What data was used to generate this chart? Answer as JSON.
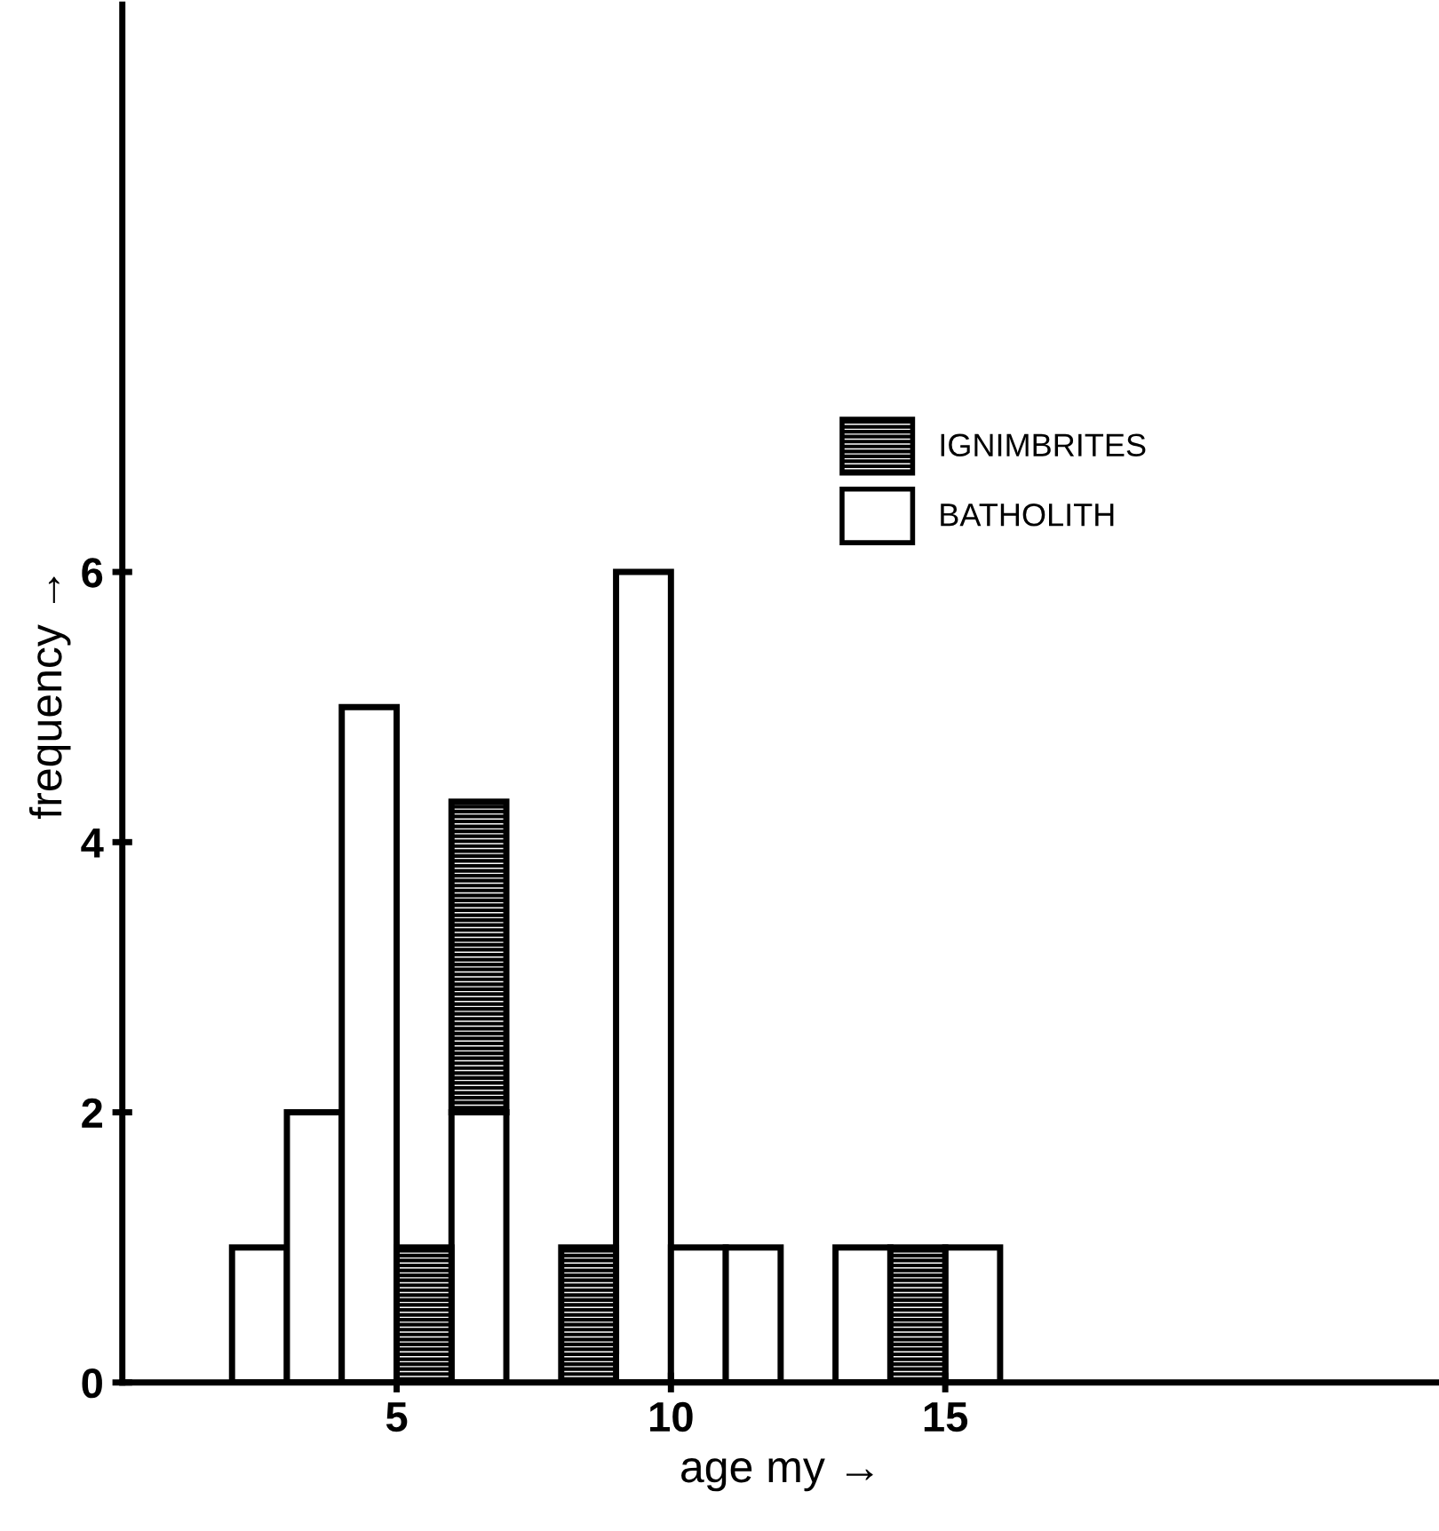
{
  "chart_data": {
    "type": "bar",
    "xlabel": "age my →",
    "ylabel": "frequency →",
    "x": [
      2.5,
      3.5,
      4.5,
      5.5,
      6.5,
      7.5,
      8.5,
      9.5,
      10.5,
      11.5,
      12.5,
      13.5,
      14.5,
      15.5,
      16.5
    ],
    "stacked": true,
    "series": [
      {
        "name": "BATHOLITH",
        "color": "#ffffff",
        "values": [
          1,
          2,
          5,
          0,
          2,
          0,
          0,
          6,
          1,
          1,
          0,
          1,
          0,
          1,
          0
        ]
      },
      {
        "name": "IGNIMBRITES",
        "color": "#000000",
        "values": [
          0,
          0,
          0,
          1,
          2.3,
          0,
          1,
          0,
          0,
          0,
          0,
          0,
          1,
          0,
          0
        ]
      }
    ],
    "xlim": [
      0,
      24
    ],
    "ylim": [
      0,
      10.2
    ],
    "xticks": [
      5,
      10,
      15
    ],
    "yticks": [
      0,
      2,
      4,
      6
    ],
    "grid": false,
    "legend": "top right"
  }
}
